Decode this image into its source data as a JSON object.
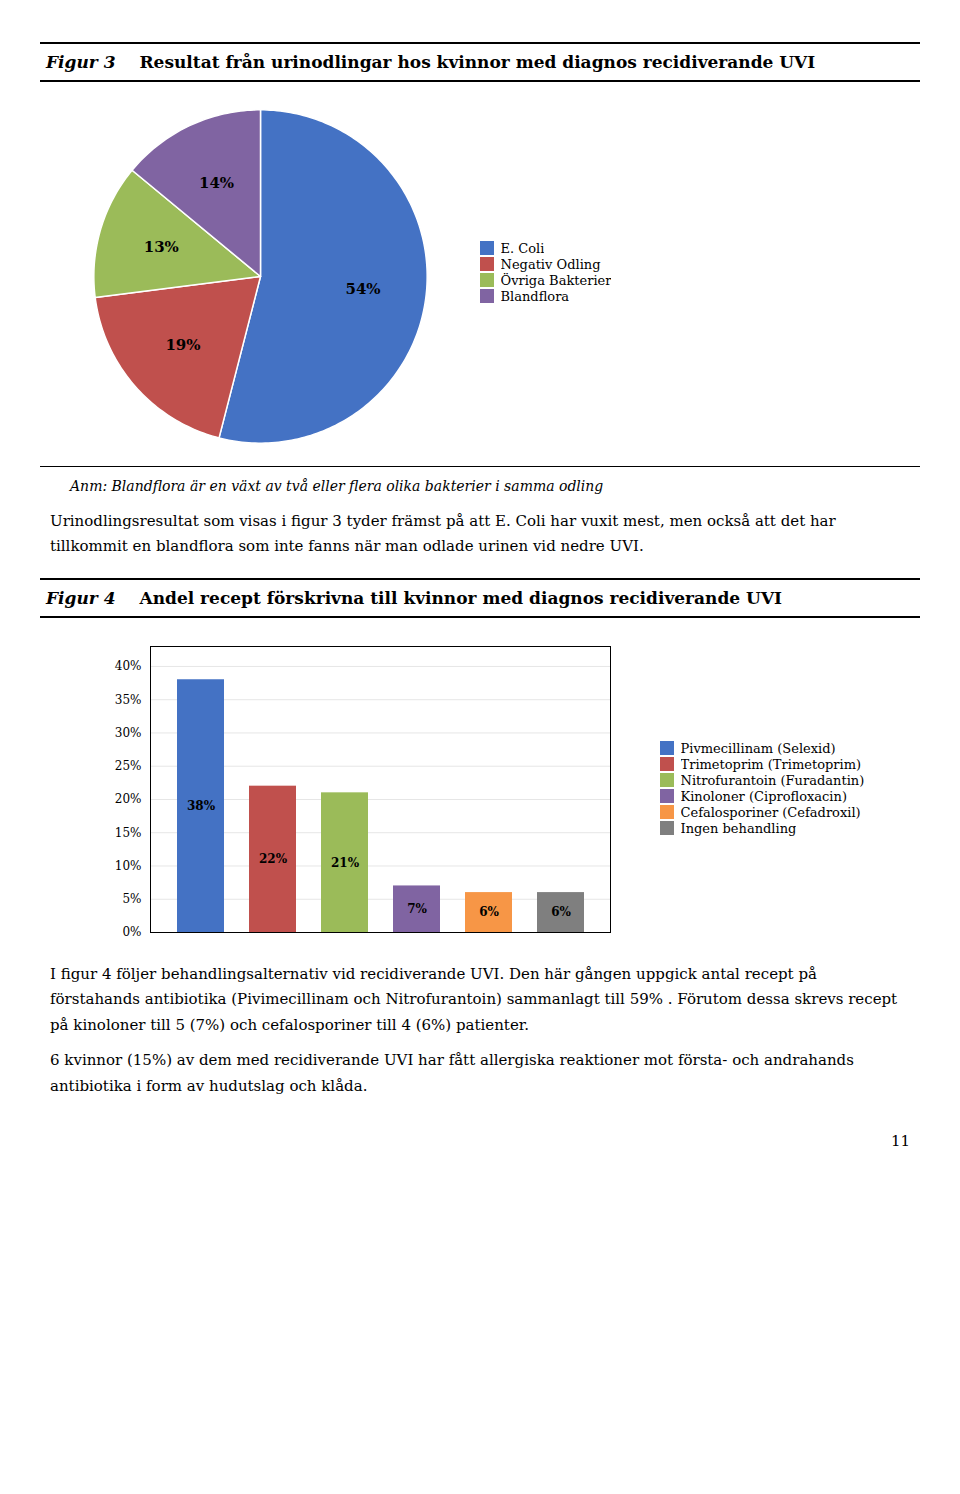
{
  "chart_data": [
    {
      "type": "pie",
      "title": "Figur 3",
      "subtitle": "Resultat från urinodlingar hos kvinnor med diagnos recidiverande UVI",
      "categories": [
        "E. Coli",
        "Negativ Odling",
        "Övriga Bakterier",
        "Blandflora"
      ],
      "values": [
        54,
        19,
        13,
        14
      ],
      "value_labels": [
        "54%",
        "19%",
        "13%",
        "14%"
      ],
      "data_labels": true,
      "colors": [
        "#4472C4",
        "#C0504D",
        "#9BBB59",
        "#8064A2"
      ],
      "annotations": [
        "Anm: Blandflora är en växt av två eller flera olika bakterier i samma odling",
        "Urinodlingsresultat som visas i figur 3 tyder främst på att E. Coli har vuxit mest, men också att det har tillkommit en blandflora som inte fanns när man odlade urinen vid nedre UVI."
      ]
    },
    {
      "type": "bar",
      "title": "Figur 4",
      "subtitle": "Andel recept förskrivna till kvinnor med diagnos recidiverande UVI",
      "categories": [
        "Pivmecillinam (Selexid)",
        "Trimetoprim (Trimetoprim)",
        "Nitrofurantoin (Furadantin)",
        "Kinoloner (Ciprofloxacin)",
        "Cefalosporiner (Cefadroxil)",
        "Ingen behandling"
      ],
      "values": [
        38,
        22,
        21,
        7,
        6,
        6
      ],
      "value_labels": [
        "38%",
        "22%",
        "21%",
        "7%",
        "6%",
        "6%"
      ],
      "data_labels": true,
      "colors": [
        "#4472C4",
        "#C0504D",
        "#9BBB59",
        "#8064A2",
        "#F79646",
        "#7F7F7F"
      ],
      "ylim": [
        0,
        43
      ],
      "yticks": [
        {
          "value": 0,
          "label": "0%"
        },
        {
          "value": 5,
          "label": "5%"
        },
        {
          "value": 10,
          "label": "10%"
        },
        {
          "value": 15,
          "label": "15%"
        },
        {
          "value": 20,
          "label": "20%"
        },
        {
          "value": 25,
          "label": "25%"
        },
        {
          "value": 30,
          "label": "30%"
        },
        {
          "value": 35,
          "label": "35%"
        },
        {
          "value": 40,
          "label": "40%"
        }
      ],
      "grid": true,
      "tick_labels": "y",
      "annotations": [
        "I figur 4 följer behandlingsalternativ vid recidiverande UVI. Den här gången uppgick antal recept på förstahands antibiotika (Pivimecillinam och Nitrofurantoin) sammanlagt till 59% . Förutom dessa skrevs recept på kinoloner till 5 (7%) och cefalosporiner till 4 (6%) patienter.",
        "6 kvinnor (15%) av dem med recidiverande UVI har fått allergiska reaktioner mot första- och andrahands antibiotika i form av hudutslag och klåda.",
        "11"
      ]
    }
  ]
}
